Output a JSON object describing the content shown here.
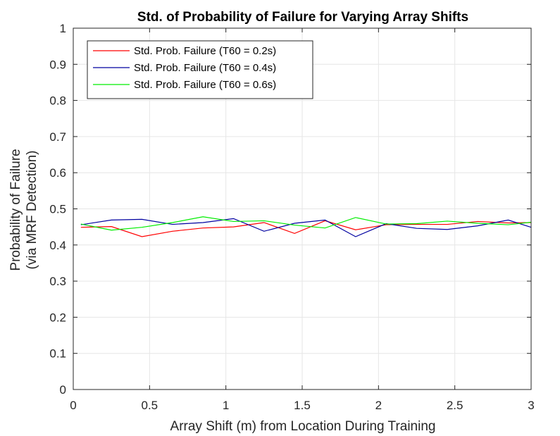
{
  "chart_data": {
    "type": "line",
    "title": "Std. of Probability of Failure for Varying Array Shifts",
    "xlabel": "Array Shift (m) from Location During Training",
    "ylabel_lines": [
      "Probability of Failure",
      "(via MRF Detection)"
    ],
    "xlim": [
      0,
      3
    ],
    "ylim": [
      0,
      1
    ],
    "xticks": [
      "0",
      "0.5",
      "1",
      "1.5",
      "2",
      "2.5",
      "3"
    ],
    "yticks": [
      "0",
      "0.1",
      "0.2",
      "0.3",
      "0.4",
      "0.5",
      "0.6",
      "0.7",
      "0.8",
      "0.9",
      "1"
    ],
    "grid": true,
    "legend_position": "top-left",
    "x": [
      0.05,
      0.25,
      0.45,
      0.65,
      0.85,
      1.05,
      1.25,
      1.45,
      1.65,
      1.85,
      2.05,
      2.25,
      2.45,
      2.65,
      2.85,
      3.0
    ],
    "series": [
      {
        "name": "Std. Prob. Failure (T60 = 0.2s)",
        "color": "#ff0000",
        "values": [
          0.449,
          0.451,
          0.423,
          0.438,
          0.447,
          0.45,
          0.462,
          0.432,
          0.467,
          0.442,
          0.456,
          0.457,
          0.457,
          0.465,
          0.461,
          0.462
        ]
      },
      {
        "name": "Std. Prob. Failure (T60 = 0.4s)",
        "color": "#0000a0",
        "values": [
          0.456,
          0.469,
          0.471,
          0.457,
          0.462,
          0.473,
          0.438,
          0.46,
          0.469,
          0.423,
          0.459,
          0.446,
          0.443,
          0.453,
          0.469,
          0.449
        ]
      },
      {
        "name": "Std. Prob. Failure (T60 = 0.6s)",
        "color": "#00ee00",
        "values": [
          0.458,
          0.441,
          0.449,
          0.462,
          0.478,
          0.465,
          0.467,
          0.455,
          0.447,
          0.476,
          0.458,
          0.459,
          0.466,
          0.46,
          0.456,
          0.463
        ]
      }
    ]
  }
}
